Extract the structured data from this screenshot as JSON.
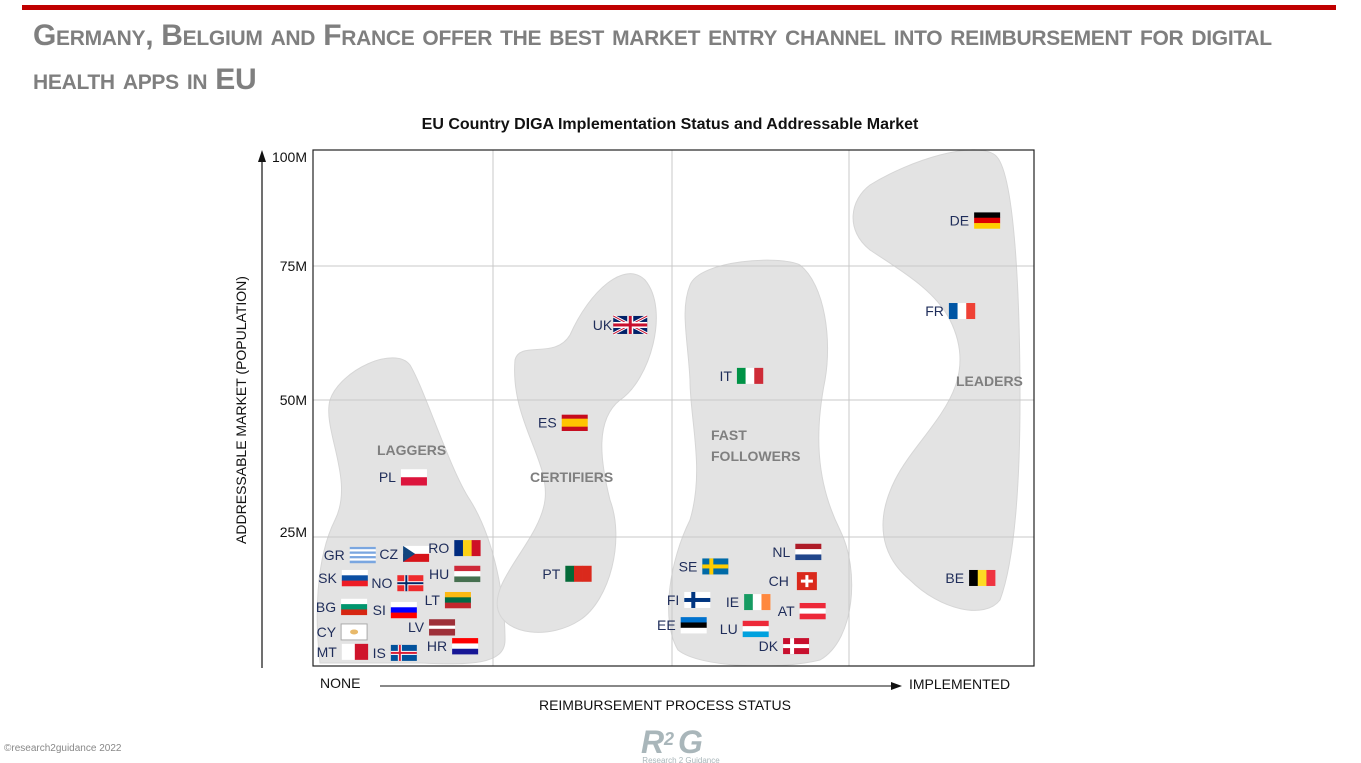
{
  "header": {
    "title": "Germany, Belgium and France offer the best market entry channel into reimbursement for digital health apps in EU",
    "accent_color": "#c00000"
  },
  "footer": {
    "copyright": "©research2guidance 2022",
    "logo_text": "R2G",
    "logo_subtext": "Research 2 Guidance"
  },
  "chart_data": {
    "type": "scatter",
    "title": "EU Country DIGA Implementation Status and Addressable Market",
    "xlabel": "REIMBURSEMENT PROCESS STATUS",
    "x_start_label": "NONE",
    "x_end_label": "IMPLEMENTED",
    "ylabel": "ADDRESSABLE MARKET (POPULATION)",
    "y_ticks": [
      "100M",
      "75M",
      "50M",
      "25M"
    ],
    "y_tick_values": [
      100,
      75,
      50,
      25
    ],
    "ylim": [
      0,
      100
    ],
    "xlim": [
      0,
      100
    ],
    "grid": true,
    "groups": [
      {
        "label": "LAGGERS"
      },
      {
        "label": "CERTIFIERS"
      },
      {
        "label_lines": [
          "FAST",
          "FOLLOWERS"
        ]
      },
      {
        "label": "LEADERS"
      }
    ],
    "points": [
      {
        "label": "DE",
        "x": 93.5,
        "y": 85,
        "flag": {
          "dir": "h",
          "c": [
            "#000000",
            "#dd0000",
            "#ffce00"
          ]
        }
      },
      {
        "label": "FR",
        "x": 90,
        "y": 66.6,
        "flag": {
          "dir": "v",
          "c": [
            "#0055a4",
            "#ffffff",
            "#ef4135"
          ]
        }
      },
      {
        "label": "BE",
        "x": 92.8,
        "y": 16.8,
        "flag": {
          "dir": "v",
          "c": [
            "#000000",
            "#fdda24",
            "#ef3340"
          ]
        }
      },
      {
        "label": "UK",
        "x": 44,
        "y": 64,
        "flag": {
          "type": "uk"
        }
      },
      {
        "label": "ES",
        "x": 36.3,
        "y": 45.8,
        "flag": {
          "dir": "h",
          "c": [
            "#c60b1e",
            "#ffc400",
            "#ffc400",
            "#c60b1e"
          ]
        }
      },
      {
        "label": "PT",
        "x": 36.8,
        "y": 17.6,
        "flag": {
          "dir": "v",
          "c": [
            "#046a38",
            "#da291c",
            "#da291c"
          ]
        }
      },
      {
        "label": "IT",
        "x": 60.6,
        "y": 54.5,
        "flag": {
          "dir": "v",
          "c": [
            "#009246",
            "#ffffff",
            "#ce2b37"
          ]
        }
      },
      {
        "label": "SE",
        "x": 55.8,
        "y": 19,
        "flag": {
          "type": "cross",
          "bg": "#006aa7",
          "fg": "#fecc00"
        }
      },
      {
        "label": "NL",
        "x": 68.7,
        "y": 21.8,
        "flag": {
          "dir": "h",
          "c": [
            "#ae1c28",
            "#ffffff",
            "#21468b"
          ]
        }
      },
      {
        "label": "CH",
        "x": 68.5,
        "y": 16.2,
        "flag": {
          "type": "swiss"
        }
      },
      {
        "label": "IE",
        "x": 61.6,
        "y": 12.2,
        "flag": {
          "dir": "v",
          "c": [
            "#169b62",
            "#ffffff",
            "#ff883e"
          ]
        }
      },
      {
        "label": "FI",
        "x": 53.3,
        "y": 12.6,
        "flag": {
          "type": "cross",
          "bg": "#ffffff",
          "fg": "#003580"
        }
      },
      {
        "label": "AT",
        "x": 69.3,
        "y": 10.5,
        "flag": {
          "dir": "h",
          "c": [
            "#ed2939",
            "#ffffff",
            "#ed2939"
          ]
        }
      },
      {
        "label": "EE",
        "x": 52.8,
        "y": 7.8,
        "flag": {
          "dir": "h",
          "c": [
            "#0072ce",
            "#000000",
            "#ffffff"
          ]
        }
      },
      {
        "label": "LU",
        "x": 61.4,
        "y": 7.1,
        "flag": {
          "dir": "h",
          "c": [
            "#ed2939",
            "#ffffff",
            "#00a1de"
          ]
        }
      },
      {
        "label": "DK",
        "x": 67,
        "y": 3.8,
        "flag": {
          "type": "cross",
          "bg": "#c8102e",
          "fg": "#ffffff"
        }
      },
      {
        "label": "PL",
        "x": 14,
        "y": 35.7,
        "flag": {
          "dir": "h",
          "c": [
            "#ffffff",
            "#dc143c"
          ]
        }
      },
      {
        "label": "GR",
        "x": 6.9,
        "y": 21.2,
        "flag": {
          "dir": "h",
          "c": [
            "#7aa6e0",
            "#ffffff",
            "#7aa6e0",
            "#ffffff",
            "#7aa6e0",
            "#ffffff",
            "#7aa6e0"
          ]
        }
      },
      {
        "label": "CZ",
        "x": 14.3,
        "y": 21.4,
        "flag": {
          "type": "cz"
        }
      },
      {
        "label": "RO",
        "x": 21.4,
        "y": 22.5,
        "flag": {
          "dir": "v",
          "c": [
            "#002b7f",
            "#fcd116",
            "#ce1126"
          ]
        }
      },
      {
        "label": "SK",
        "x": 5.8,
        "y": 16.8,
        "flag": {
          "dir": "h",
          "c": [
            "#ffffff",
            "#0b4ea2",
            "#ee1c25"
          ]
        }
      },
      {
        "label": "NO",
        "x": 13.5,
        "y": 15.8,
        "flag": {
          "type": "cross2",
          "bg": "#ef2b2d",
          "fg": "#ffffff",
          "fg2": "#002868"
        }
      },
      {
        "label": "HU",
        "x": 21.4,
        "y": 17.6,
        "flag": {
          "dir": "h",
          "c": [
            "#ce2939",
            "#ffffff",
            "#477050"
          ]
        }
      },
      {
        "label": "BG",
        "x": 5.7,
        "y": 11.3,
        "flag": {
          "dir": "h",
          "c": [
            "#ffffff",
            "#00966e",
            "#d62612"
          ]
        }
      },
      {
        "label": "SI",
        "x": 12.6,
        "y": 10.7,
        "flag": {
          "dir": "h",
          "c": [
            "#ffffff",
            "#0000ff",
            "#ff0000"
          ]
        }
      },
      {
        "label": "LT",
        "x": 20.1,
        "y": 12.6,
        "flag": {
          "dir": "h",
          "c": [
            "#fdb913",
            "#006a44",
            "#c1272d"
          ]
        }
      },
      {
        "label": "CY",
        "x": 5.7,
        "y": 6.5,
        "flag": {
          "type": "cy"
        }
      },
      {
        "label": "LV",
        "x": 17.9,
        "y": 7.4,
        "flag": {
          "dir": "h",
          "c": [
            "#9e3039",
            "#9e3039",
            "#ffffff",
            "#9e3039",
            "#9e3039"
          ]
        }
      },
      {
        "label": "MT",
        "x": 5.8,
        "y": 2.7,
        "flag": {
          "dir": "v",
          "c": [
            "#ffffff",
            "#cf142b"
          ]
        }
      },
      {
        "label": "IS",
        "x": 12.6,
        "y": 2.5,
        "flag": {
          "type": "cross2",
          "bg": "#02529c",
          "fg": "#ffffff",
          "fg2": "#dc1e35"
        }
      },
      {
        "label": "HR",
        "x": 21.1,
        "y": 3.8,
        "flag": {
          "dir": "h",
          "c": [
            "#ff0000",
            "#ffffff",
            "#171796"
          ]
        }
      }
    ]
  }
}
